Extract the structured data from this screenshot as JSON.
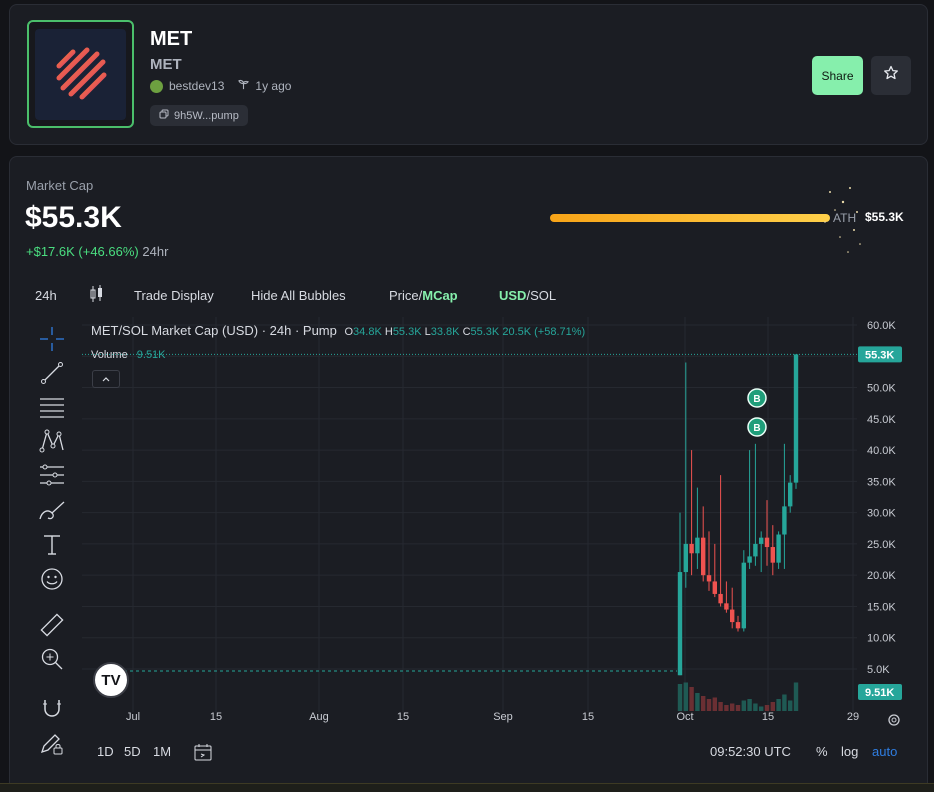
{
  "token": {
    "name": "MET",
    "symbol": "MET",
    "creator": "bestdev13",
    "age": "1y ago",
    "address": "9h5W...pump"
  },
  "actions": {
    "share_label": "Share"
  },
  "market": {
    "label": "Market Cap",
    "value": "$55.3K",
    "change": "+$17.6K (+46.66%)",
    "period": "24hr",
    "ath_label": "ATH",
    "ath_value": "$55.3K",
    "ath_progress": 1.0
  },
  "toolbar": {
    "interval": "24h",
    "trade_display": "Trade Display",
    "hide_bubbles": "Hide All Bubbles",
    "price_label": "Price/",
    "mcap_label": "MCap",
    "usd_label": "USD",
    "sol_label": "/SOL"
  },
  "chart": {
    "title": "MET/SOL Market Cap (USD) · 24h · Pump",
    "o_label": "O",
    "o_value": "34.8K",
    "h_label": "H",
    "h_value": "55.3K",
    "l_label": "L",
    "l_value": "33.8K",
    "c_label": "C",
    "c_value": "55.3K",
    "change": "20.5K (+58.71%)",
    "volume_label": "Volume",
    "volume_value": "9.51K",
    "price_tag": "55.3K",
    "volume_tag": "9.51K",
    "trade_marker": "B"
  },
  "chart_data": {
    "type": "candlestick",
    "yticks": [
      "60.0K",
      "55.0K",
      "50.0K",
      "45.0K",
      "40.0K",
      "35.0K",
      "30.0K",
      "25.0K",
      "20.0K",
      "15.0K",
      "10.0K",
      "5.0K"
    ],
    "ylim": [
      0,
      62000
    ],
    "xticks": [
      "Jul",
      "15",
      "Aug",
      "15",
      "Sep",
      "15",
      "Oct",
      "15",
      "29"
    ],
    "candles": [
      {
        "o": 4000,
        "h": 30000,
        "l": 4000,
        "c": 20500
      },
      {
        "o": 20500,
        "h": 54000,
        "l": 18000,
        "c": 25000
      },
      {
        "o": 25000,
        "h": 40000,
        "l": 20000,
        "c": 23500
      },
      {
        "o": 23500,
        "h": 34000,
        "l": 21000,
        "c": 26000
      },
      {
        "o": 26000,
        "h": 31000,
        "l": 19000,
        "c": 20000
      },
      {
        "o": 20000,
        "h": 27000,
        "l": 17500,
        "c": 19000
      },
      {
        "o": 19000,
        "h": 25000,
        "l": 16500,
        "c": 17000
      },
      {
        "o": 17000,
        "h": 36000,
        "l": 15000,
        "c": 15500
      },
      {
        "o": 15500,
        "h": 19000,
        "l": 14000,
        "c": 14500
      },
      {
        "o": 14500,
        "h": 18000,
        "l": 11500,
        "c": 12500
      },
      {
        "o": 12500,
        "h": 13500,
        "l": 11000,
        "c": 11500
      },
      {
        "o": 11500,
        "h": 24000,
        "l": 11000,
        "c": 22000
      },
      {
        "o": 22000,
        "h": 40000,
        "l": 21000,
        "c": 23000
      },
      {
        "o": 23000,
        "h": 41000,
        "l": 21500,
        "c": 25000
      },
      {
        "o": 25000,
        "h": 27000,
        "l": 20500,
        "c": 26000
      },
      {
        "o": 26000,
        "h": 32000,
        "l": 21500,
        "c": 24500
      },
      {
        "o": 24500,
        "h": 28000,
        "l": 20000,
        "c": 22000
      },
      {
        "o": 22000,
        "h": 27000,
        "l": 21000,
        "c": 26500
      },
      {
        "o": 26500,
        "h": 41000,
        "l": 21000,
        "c": 31000
      },
      {
        "o": 31000,
        "h": 36000,
        "l": 30000,
        "c": 34800
      },
      {
        "o": 34800,
        "h": 55300,
        "l": 33800,
        "c": 55300
      }
    ],
    "volume": [
      9.0,
      9.5,
      8.0,
      6.0,
      5.0,
      4.0,
      4.5,
      3.0,
      2.0,
      2.5,
      2.0,
      3.5,
      4.0,
      2.5,
      1.5,
      2.0,
      3.0,
      4.0,
      5.5,
      3.5,
      9.51
    ]
  },
  "bottom": {
    "tf_1d": "1D",
    "tf_5d": "5D",
    "tf_1m": "1M",
    "time": "09:52:30 UTC",
    "percent": "%",
    "log": "log",
    "auto": "auto"
  },
  "colors": {
    "up": "#26a69a",
    "down": "#ef5350",
    "accent": "#86efac"
  }
}
